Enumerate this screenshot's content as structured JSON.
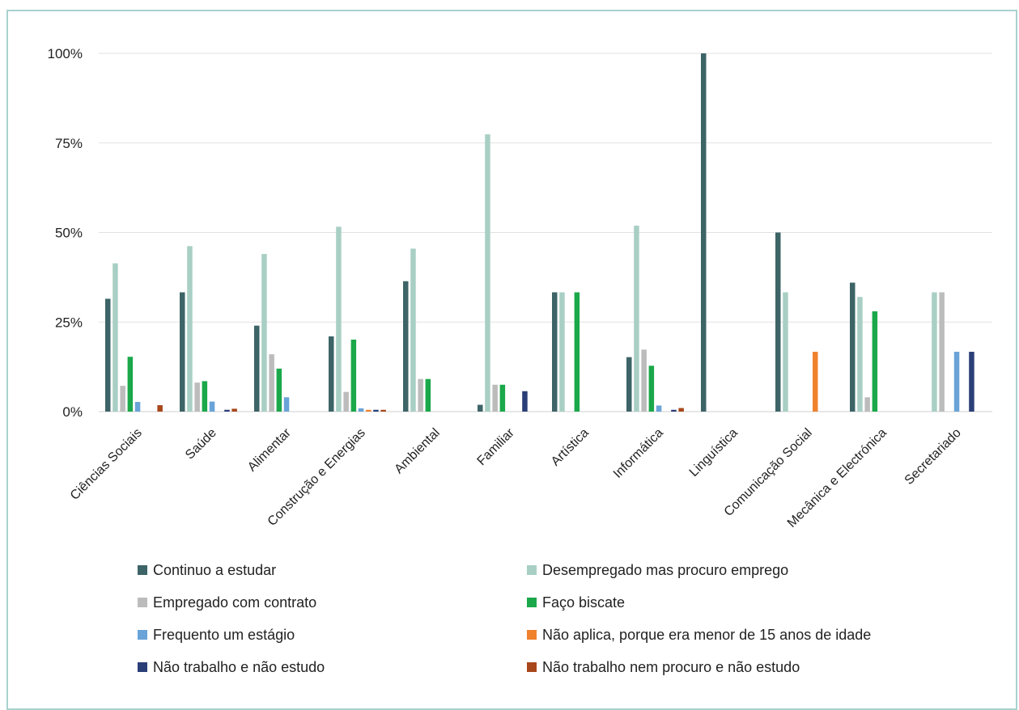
{
  "chart_data": {
    "type": "bar",
    "title": "",
    "xlabel": "",
    "ylabel": "",
    "ylim": [
      0,
      100
    ],
    "yticks": [
      "0%",
      "25%",
      "50%",
      "75%",
      "100%"
    ],
    "ytick_values": [
      0,
      25,
      50,
      75,
      100
    ],
    "grid": true,
    "legend_position": "bottom",
    "categories": [
      "Ciências Sociais",
      "Saúde",
      "Alimentar",
      "Construção e Energias",
      "Ambiental",
      "Familiar",
      "Artística",
      "Informática",
      "Linguística",
      "Comunicação Social",
      "Mecânica e Electrónica",
      "Secretariado"
    ],
    "series": [
      {
        "name": "Continuo a estudar",
        "color": "#3d6467",
        "values": [
          31.5,
          33.3,
          24,
          21,
          36.4,
          1.9,
          33.3,
          15.2,
          100,
          50,
          36,
          0
        ]
      },
      {
        "name": "Desempregado mas procuro emprego",
        "color": "#a9cfc5",
        "values": [
          41.4,
          46.2,
          44,
          51.6,
          45.5,
          77.4,
          33.3,
          51.9,
          0,
          33.3,
          32,
          33.3
        ]
      },
      {
        "name": "Empregado com contrato",
        "color": "#bcbcbc",
        "values": [
          7.2,
          8.1,
          16,
          5.5,
          9.1,
          7.5,
          0,
          17.3,
          0,
          0,
          4,
          33.3
        ]
      },
      {
        "name": "Faço biscate",
        "color": "#1aa84a",
        "values": [
          15.3,
          8.5,
          12,
          20.1,
          9.1,
          7.5,
          33.3,
          12.8,
          0,
          0,
          28,
          0
        ]
      },
      {
        "name": "Frequento um estágio",
        "color": "#69a3d8",
        "values": [
          2.7,
          2.8,
          4,
          0.9,
          0,
          0,
          0,
          1.7,
          0,
          0,
          0,
          16.7
        ]
      },
      {
        "name": "Não aplica, porque era menor de 15 anos de idade",
        "color": "#f0822e",
        "values": [
          0,
          0,
          0,
          0.5,
          0,
          0,
          0,
          0,
          0,
          16.7,
          0,
          0
        ]
      },
      {
        "name": "Não trabalho e não estudo",
        "color": "#2a3e78",
        "values": [
          0,
          0.5,
          0,
          0.5,
          0,
          5.7,
          0,
          0.5,
          0,
          0,
          0,
          16.7
        ]
      },
      {
        "name": "Não trabalho nem procuro e não estudo",
        "color": "#a8471c",
        "values": [
          1.8,
          0.8,
          0,
          0.5,
          0,
          0,
          0,
          1,
          0,
          0,
          0,
          0
        ]
      }
    ]
  }
}
